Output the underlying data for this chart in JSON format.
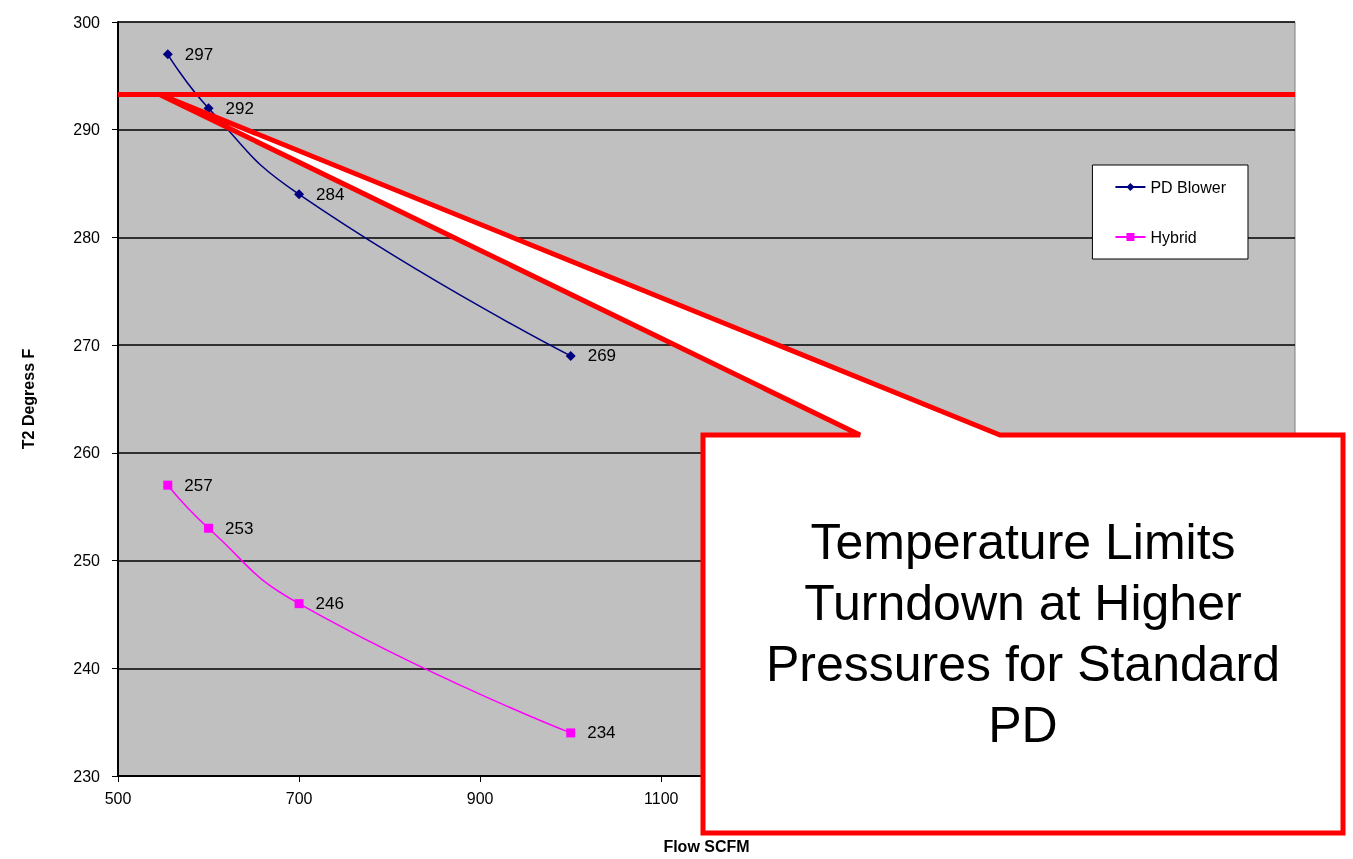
{
  "chart_data": {
    "type": "line",
    "xlabel": "Flow SCFM",
    "ylabel": "T2 Degress F",
    "xlim": [
      500,
      1800
    ],
    "xticks": [
      500,
      700,
      900,
      1100
    ],
    "ylim": [
      230,
      300
    ],
    "yticks": [
      230,
      240,
      250,
      260,
      270,
      280,
      290,
      300
    ],
    "grid": "y",
    "legend": "top right",
    "data_labels": true,
    "series": [
      {
        "name": "PD Blower",
        "color": "#000080",
        "marker": "diamond",
        "x": [
          555,
          600,
          700,
          1000
        ],
        "values": [
          297,
          292,
          284,
          269
        ]
      },
      {
        "name": "Hybrid",
        "color": "#ff00ff",
        "marker": "square",
        "x": [
          555,
          600,
          700,
          1000
        ],
        "values": [
          257,
          253,
          246,
          234
        ]
      }
    ],
    "ref_lines": [
      {
        "axis": "y",
        "value": 293.3,
        "color": "#ff0000"
      }
    ],
    "annotations": [
      "Temperature Limits Turndown at Higher Pressures for Standard PD"
    ]
  }
}
